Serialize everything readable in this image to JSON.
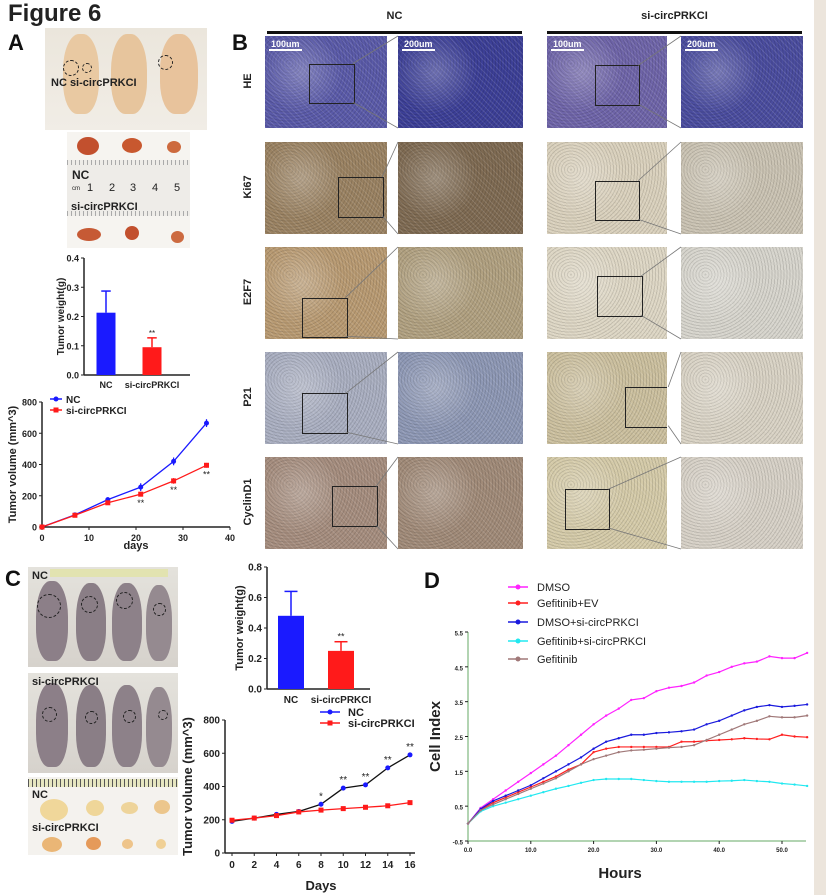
{
  "figure_title": "Figure 6",
  "panels": {
    "a": "A",
    "b": "B",
    "c": "C",
    "d": "D"
  },
  "panel_a": {
    "mice_label": "NC si-circPRKCI",
    "ruler_nc": "NC",
    "ruler_unit": "cm",
    "ruler_numbers": [
      "1",
      "2",
      "3",
      "4",
      "5"
    ],
    "ruler_si": "si-circPRKCI"
  },
  "panel_b": {
    "columns": [
      "NC",
      "si-circPRKCI"
    ],
    "rows": [
      "HE",
      "Ki67",
      "E2F7",
      "P21",
      "CyclinD1"
    ],
    "scale_low": "100um",
    "scale_high": "200um"
  },
  "panel_c": {
    "top_label": "NC",
    "middle_label": "si-circPRKCI",
    "tumor_nc": "NC",
    "tumor_si": "si-circPRKCI"
  },
  "colors": {
    "nc": "#1a1aff",
    "si": "#ff1a1a",
    "dmso": "#ff22ff",
    "gef_ev": "#ff2020",
    "dmso_si": "#1a1add",
    "gef_si": "#22e8f0",
    "gef": "#a07878"
  },
  "chart_data": [
    {
      "id": "a_bar",
      "type": "bar",
      "categories": [
        "NC",
        "si-circPRKCI"
      ],
      "values": [
        0.213,
        0.095
      ],
      "errors": [
        0.074,
        0.032
      ],
      "significance": [
        "",
        "**"
      ],
      "ylabel": "Tumor weight(g)",
      "ylim": [
        0,
        0.4
      ],
      "yticks": [
        "0.0",
        "0.1",
        "0.2",
        "0.3",
        "0.4"
      ],
      "colors": [
        "#1a1aff",
        "#ff1a1a"
      ]
    },
    {
      "id": "a_line",
      "type": "line",
      "x": [
        0,
        7,
        14,
        21,
        28,
        35
      ],
      "series": [
        {
          "name": "NC",
          "values": [
            0,
            78,
            175,
            255,
            420,
            665
          ],
          "errors": [
            0,
            12,
            15,
            25,
            25,
            25
          ],
          "color": "#1a1aff"
        },
        {
          "name": "si-circPRKCI",
          "values": [
            0,
            75,
            155,
            210,
            295,
            395
          ],
          "errors": [
            0,
            10,
            10,
            15,
            18,
            15
          ],
          "color": "#ff1a1a"
        }
      ],
      "significance": [
        "",
        "",
        "",
        "**",
        "**",
        "**"
      ],
      "xlabel": "days",
      "ylabel": "Tumor volume (mm^3)",
      "xlim": [
        0,
        40
      ],
      "ylim": [
        0,
        800
      ],
      "xticks": [
        "0",
        "10",
        "20",
        "30",
        "40"
      ],
      "yticks": [
        "0",
        "200",
        "400",
        "600",
        "800"
      ],
      "legend": "top-left"
    },
    {
      "id": "c_bar",
      "type": "bar",
      "categories": [
        "NC",
        "si-circPRKCI"
      ],
      "values": [
        0.48,
        0.25
      ],
      "errors": [
        0.16,
        0.06
      ],
      "significance": [
        "",
        "**"
      ],
      "ylabel": "Tumor weight(g)",
      "ylim": [
        0,
        0.8
      ],
      "yticks": [
        "0.0",
        "0.2",
        "0.4",
        "0.6",
        "0.8"
      ],
      "colors": [
        "#1a1aff",
        "#ff1a1a"
      ]
    },
    {
      "id": "c_line",
      "type": "line",
      "x": [
        0,
        2,
        4,
        6,
        8,
        10,
        12,
        14,
        16
      ],
      "series": [
        {
          "name": "NC",
          "values": [
            190,
            210,
            232,
            250,
            293,
            390,
            410,
            512,
            590
          ],
          "color": "#1a1aff",
          "line_color": "#111111"
        },
        {
          "name": "si-circPRKCI",
          "values": [
            197,
            210,
            225,
            247,
            258,
            267,
            275,
            284,
            303
          ],
          "color": "#ff1a1a"
        }
      ],
      "significance": [
        "",
        "",
        "",
        "",
        "*",
        "**",
        "**",
        "**",
        "**"
      ],
      "xlabel": "Days",
      "ylabel": "Tumor volume (mm^3)",
      "xlim": [
        0,
        16
      ],
      "ylim": [
        0,
        800
      ],
      "xticks": [
        "0",
        "2",
        "4",
        "6",
        "8",
        "10",
        "12",
        "14",
        "16"
      ],
      "yticks": [
        "0",
        "200",
        "400",
        "600",
        "800"
      ],
      "legend": "top-right"
    },
    {
      "id": "d_line",
      "type": "line",
      "x": [
        0,
        2,
        4,
        6,
        8,
        10,
        12,
        14,
        16,
        18,
        20,
        22,
        24,
        26,
        28,
        30,
        32,
        34,
        36,
        38,
        40,
        42,
        44,
        46,
        48,
        50,
        52,
        54
      ],
      "series": [
        {
          "name": "DMSO",
          "color": "#ff22ff",
          "values": [
            0,
            0.45,
            0.7,
            0.95,
            1.2,
            1.45,
            1.7,
            1.95,
            2.25,
            2.55,
            2.85,
            3.1,
            3.3,
            3.55,
            3.6,
            3.8,
            3.9,
            3.95,
            4.05,
            4.25,
            4.35,
            4.5,
            4.6,
            4.65,
            4.8,
            4.75,
            4.75,
            4.9
          ]
        },
        {
          "name": "Gefitinib+EV",
          "color": "#ff2020",
          "values": [
            0,
            0.4,
            0.6,
            0.75,
            0.9,
            1.05,
            1.2,
            1.35,
            1.55,
            1.7,
            2.05,
            2.15,
            2.2,
            2.2,
            2.2,
            2.2,
            2.2,
            2.35,
            2.35,
            2.38,
            2.4,
            2.42,
            2.45,
            2.43,
            2.42,
            2.55,
            2.5,
            2.48
          ]
        },
        {
          "name": "DMSO+si-circPRKCI",
          "color": "#1a1add",
          "values": [
            0,
            0.42,
            0.65,
            0.8,
            0.95,
            1.1,
            1.3,
            1.5,
            1.7,
            1.9,
            2.15,
            2.35,
            2.45,
            2.55,
            2.55,
            2.6,
            2.62,
            2.65,
            2.7,
            2.85,
            2.95,
            3.1,
            3.25,
            3.35,
            3.4,
            3.35,
            3.38,
            3.42
          ]
        },
        {
          "name": "Gefitinib+si-circPRKCI",
          "color": "#22e8f0",
          "values": [
            0,
            0.35,
            0.5,
            0.6,
            0.7,
            0.8,
            0.9,
            1.0,
            1.08,
            1.17,
            1.25,
            1.28,
            1.28,
            1.28,
            1.25,
            1.22,
            1.2,
            1.2,
            1.2,
            1.2,
            1.22,
            1.23,
            1.25,
            1.22,
            1.2,
            1.15,
            1.12,
            1.08
          ]
        },
        {
          "name": "Gefitinib",
          "color": "#a07878",
          "values": [
            0,
            0.38,
            0.55,
            0.7,
            0.85,
            1.0,
            1.15,
            1.3,
            1.5,
            1.7,
            1.85,
            1.95,
            2.05,
            2.1,
            2.12,
            2.15,
            2.18,
            2.2,
            2.25,
            2.4,
            2.55,
            2.7,
            2.85,
            2.95,
            3.08,
            3.05,
            3.05,
            3.1
          ]
        }
      ],
      "xlabel": "Hours",
      "ylabel": "Cell Index",
      "xlim": [
        0,
        54
      ],
      "ylim": [
        -0.5,
        5.5
      ],
      "xticks": [
        "0.0",
        "10.0",
        "20.0",
        "30.0",
        "40.0",
        "50.0"
      ],
      "yticks": [
        "-0.5",
        "0.5",
        "1.5",
        "2.5",
        "3.5",
        "4.5",
        "5.5"
      ],
      "legend": "top-left"
    }
  ]
}
